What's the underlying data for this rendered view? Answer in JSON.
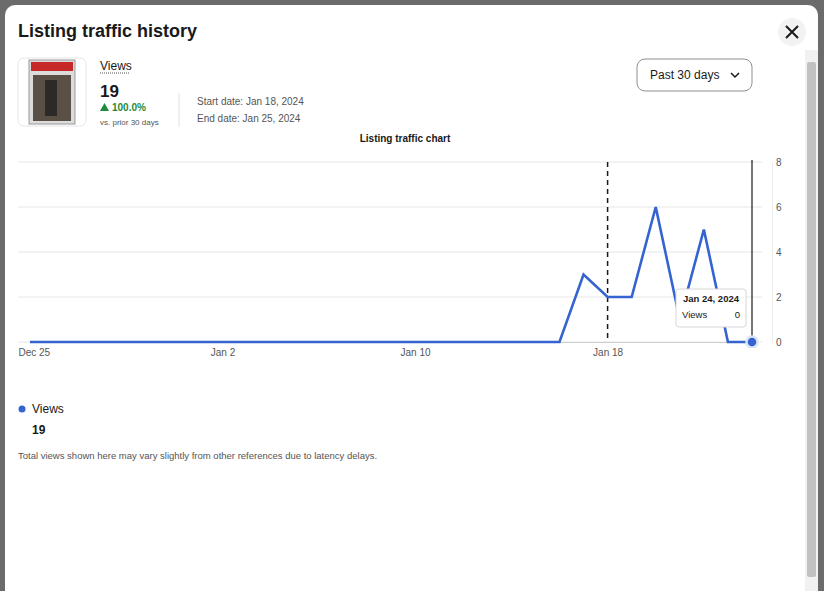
{
  "chart_data": {
    "type": "line",
    "title": "Listing traffic history",
    "subtitle": "Listing traffic chart",
    "categories": [
      "Dec 25",
      null,
      null,
      null,
      null,
      null,
      null,
      null,
      "Jan 2",
      null,
      null,
      null,
      null,
      null,
      null,
      null,
      "Jan 10",
      null,
      null,
      null,
      null,
      null,
      null,
      null,
      "Jan 18",
      null,
      null,
      null,
      null,
      null,
      null
    ],
    "series": [
      {
        "name": "Views",
        "color": "#3563d0",
        "values": [
          0,
          0,
          0,
          0,
          0,
          0,
          0,
          0,
          0,
          0,
          0,
          0,
          0,
          0,
          0,
          0,
          0,
          0,
          0,
          0,
          0,
          0,
          0,
          3,
          2,
          2,
          6,
          1,
          5,
          0,
          0
        ]
      }
    ],
    "ylim": [
      0,
      8
    ],
    "yticks": [
      0,
      2,
      4,
      6,
      8
    ],
    "grid": true,
    "annotations": [
      "Views",
      "19",
      "100.0%",
      "vs. prior 30 days",
      "Start date: Jan 18, 2024",
      "End date: Jan 25, 2024",
      "Past 30 days",
      "Jan 24, 2024",
      "Views",
      "0",
      "19",
      "Total views shown here may vary slightly from other references due to latency delays."
    ]
  }
}
